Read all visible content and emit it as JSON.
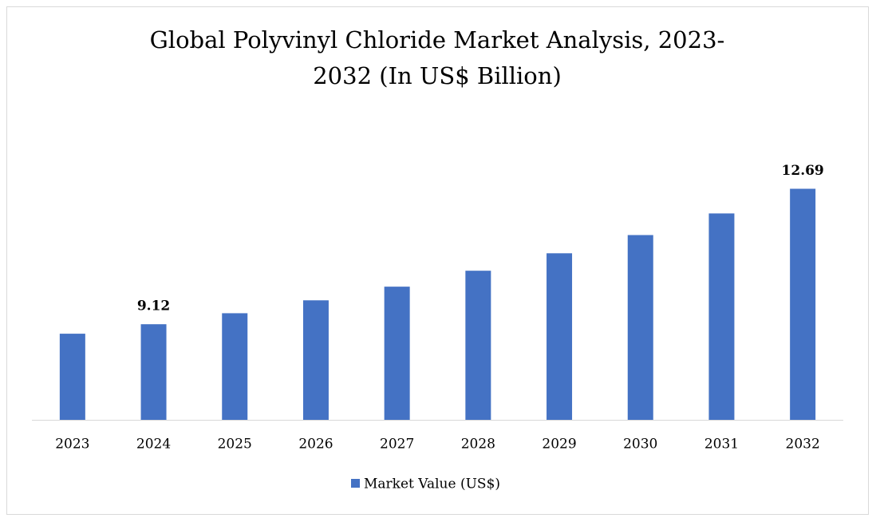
{
  "chart_data": {
    "type": "bar",
    "title": [
      "Global Polyvinyl Chloride Market Analysis, 2023-",
      "2032 (In US$ Billion)"
    ],
    "categories": [
      "2023",
      "2024",
      "2025",
      "2026",
      "2027",
      "2028",
      "2029",
      "2030",
      "2031",
      "2032"
    ],
    "series": [
      {
        "name": "Market Value (US$)",
        "color": "#4472c4",
        "values": [
          8.87,
          9.12,
          9.41,
          9.75,
          10.11,
          10.53,
          10.99,
          11.47,
          12.04,
          12.69
        ]
      }
    ],
    "data_labels": [
      1,
      9
    ],
    "ylim": [
      6.6,
      13.5
    ],
    "legend": "bottom"
  }
}
